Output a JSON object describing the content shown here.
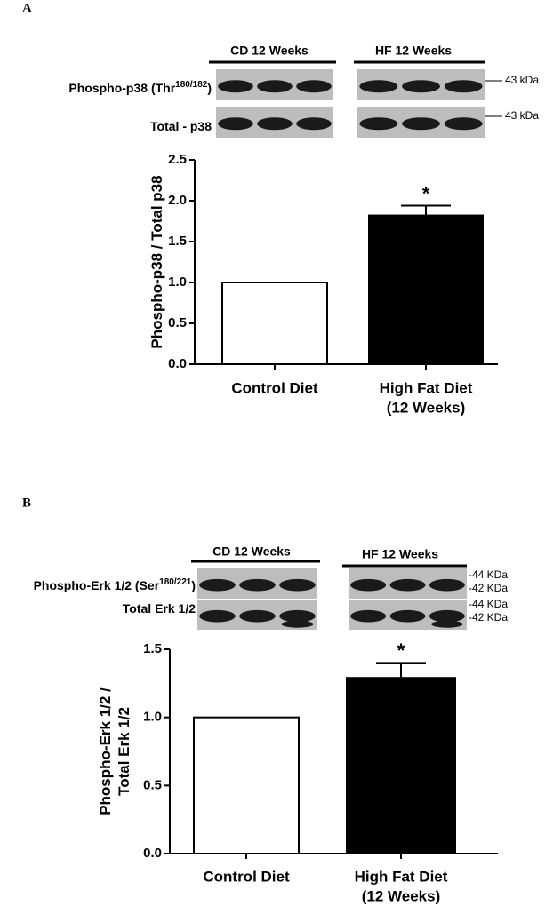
{
  "chart_data": [
    {
      "type": "bar",
      "panel": "A",
      "blot": {
        "groups": [
          "CD  12 Weeks",
          "HF  12 Weeks"
        ],
        "rows": [
          [
            "Phospho-p38 (Thr",
            "180/182",
            ")"
          ],
          [
            "Total - p38"
          ]
        ],
        "markers": [
          "43 kDa",
          "43 kDa"
        ]
      },
      "categories": [
        [
          "Control Diet"
        ],
        [
          "High Fat Diet",
          "(12 Weeks)"
        ]
      ],
      "values": [
        1.0,
        1.82
      ],
      "errors": [
        null,
        0.12
      ],
      "annotation": "*",
      "colors": [
        "#ffffff",
        "#000000"
      ],
      "ylabel": [
        "Phospho-p38 / Total p38"
      ],
      "ylim": [
        0,
        2.5
      ],
      "yticks": [
        {
          "value": 0,
          "label": "0.0"
        },
        {
          "value": 0.5,
          "label": "0.5"
        },
        {
          "value": 1,
          "label": "1.0"
        },
        {
          "value": 1.5,
          "label": "1.5"
        },
        {
          "value": 2,
          "label": "2.0"
        },
        {
          "value": 2.5,
          "label": "2.5"
        }
      ]
    },
    {
      "type": "bar",
      "panel": "B",
      "blot": {
        "groups": [
          "CD  12 Weeks",
          "HF  12 Weeks"
        ],
        "rows": [
          [
            "Phospho-Erk 1/2 (Ser",
            "180/221",
            ")"
          ],
          [
            "Total Erk 1/2"
          ]
        ],
        "markers": [
          "-44 KDa",
          "-42 KDa",
          "-44 KDa",
          "-42 KDa"
        ]
      },
      "categories": [
        [
          "Control Diet"
        ],
        [
          "High Fat Diet",
          "(12 Weeks)"
        ]
      ],
      "values": [
        1.0,
        1.29
      ],
      "errors": [
        null,
        0.11
      ],
      "annotation": "*",
      "colors": [
        "#ffffff",
        "#000000"
      ],
      "ylabel": [
        "Phospho-Erk 1/2 /",
        "Total Erk 1/2"
      ],
      "ylim": [
        0,
        1.5
      ],
      "yticks": [
        {
          "value": 0,
          "label": "0.0"
        },
        {
          "value": 0.5,
          "label": "0.5"
        },
        {
          "value": 1,
          "label": "1.0"
        },
        {
          "value": 1.5,
          "label": "1.5"
        }
      ]
    }
  ]
}
